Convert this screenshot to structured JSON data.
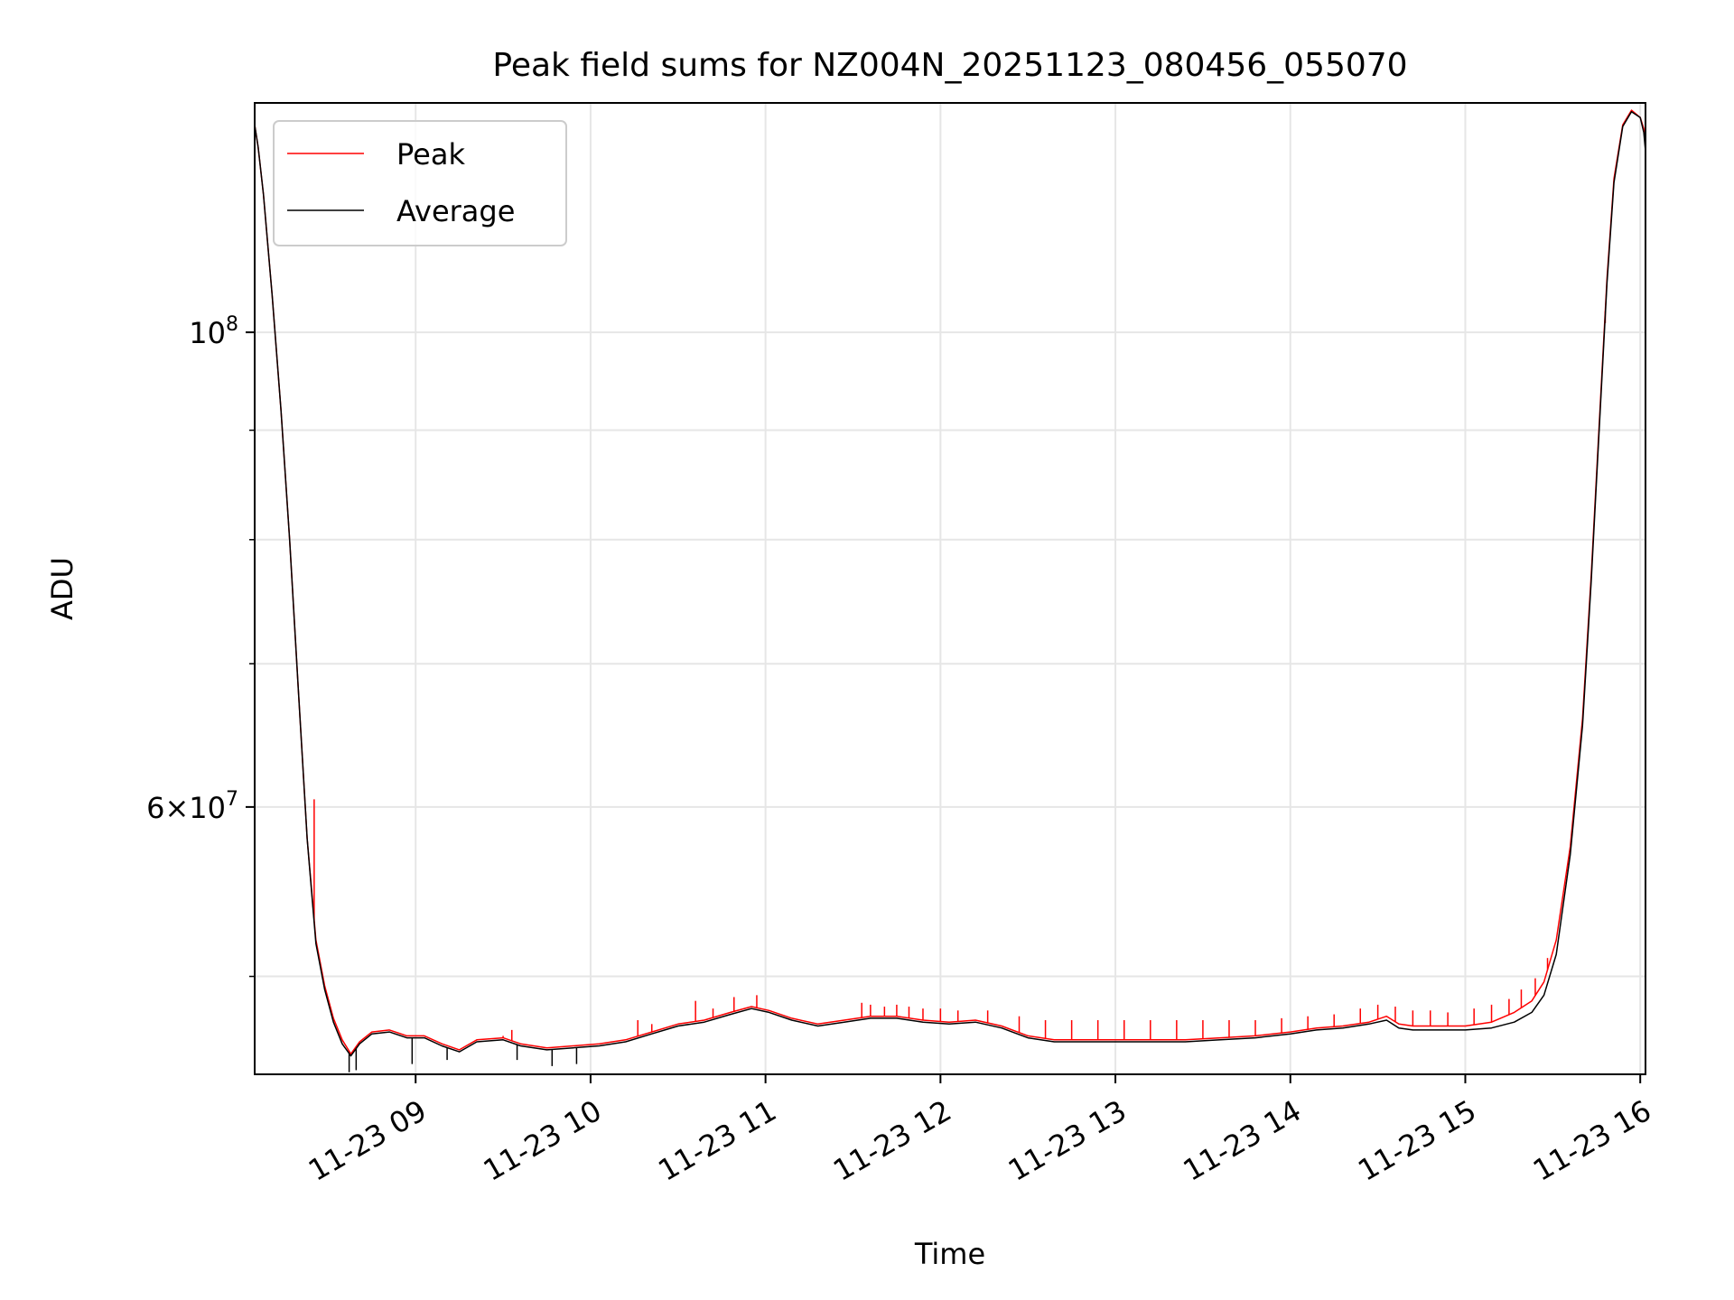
{
  "chart_data": {
    "type": "line",
    "title": "Peak field sums for NZ004N_20251123_080456_055070",
    "xlabel": "Time",
    "ylabel": "ADU",
    "yscale": "log",
    "xlim": [
      8.08,
      16.03
    ],
    "ylim": [
      45000000,
      128000000
    ],
    "x_ticks": [
      {
        "value": 9,
        "label": "11-23 09"
      },
      {
        "value": 10,
        "label": "11-23 10"
      },
      {
        "value": 11,
        "label": "11-23 11"
      },
      {
        "value": 12,
        "label": "11-23 12"
      },
      {
        "value": 13,
        "label": "11-23 13"
      },
      {
        "value": 14,
        "label": "11-23 14"
      },
      {
        "value": 15,
        "label": "11-23 15"
      },
      {
        "value": 16,
        "label": "11-23 16"
      }
    ],
    "y_major_ticks": [
      {
        "value": 100000000,
        "base": "10",
        "exp": "8",
        "mult": ""
      },
      {
        "value": 60000000,
        "base": "10",
        "exp": "7",
        "mult": "6"
      }
    ],
    "y_minor_ticks": [
      50000000,
      70000000,
      80000000,
      90000000
    ],
    "grid": true,
    "legend": {
      "position": "top-left"
    },
    "series": [
      {
        "name": "Peak",
        "color": "#ff0000",
        "points": [
          [
            8.08,
            125000000
          ],
          [
            8.1,
            122000000
          ],
          [
            8.13,
            116000000
          ],
          [
            8.18,
            104000000
          ],
          [
            8.23,
            92000000
          ],
          [
            8.28,
            80000000
          ],
          [
            8.33,
            68000000
          ],
          [
            8.38,
            58000000
          ],
          [
            8.43,
            52000000
          ],
          [
            8.48,
            49500000
          ],
          [
            8.53,
            47800000
          ],
          [
            8.58,
            46700000
          ],
          [
            8.63,
            46000000
          ],
          [
            8.68,
            46600000
          ],
          [
            8.75,
            47100000
          ],
          [
            8.85,
            47200000
          ],
          [
            8.95,
            46900000
          ],
          [
            9.05,
            46900000
          ],
          [
            9.15,
            46500000
          ],
          [
            9.25,
            46200000
          ],
          [
            9.35,
            46700000
          ],
          [
            9.5,
            46800000
          ],
          [
            9.6,
            46500000
          ],
          [
            9.75,
            46300000
          ],
          [
            9.9,
            46400000
          ],
          [
            10.05,
            46500000
          ],
          [
            10.2,
            46700000
          ],
          [
            10.35,
            47100000
          ],
          [
            10.5,
            47500000
          ],
          [
            10.65,
            47700000
          ],
          [
            10.8,
            48100000
          ],
          [
            10.92,
            48400000
          ],
          [
            11.02,
            48200000
          ],
          [
            11.15,
            47800000
          ],
          [
            11.3,
            47500000
          ],
          [
            11.45,
            47700000
          ],
          [
            11.6,
            47900000
          ],
          [
            11.75,
            47900000
          ],
          [
            11.9,
            47700000
          ],
          [
            12.05,
            47600000
          ],
          [
            12.2,
            47700000
          ],
          [
            12.35,
            47400000
          ],
          [
            12.5,
            46900000
          ],
          [
            12.65,
            46700000
          ],
          [
            12.8,
            46700000
          ],
          [
            13.0,
            46700000
          ],
          [
            13.2,
            46700000
          ],
          [
            13.4,
            46700000
          ],
          [
            13.6,
            46800000
          ],
          [
            13.8,
            46900000
          ],
          [
            14.0,
            47100000
          ],
          [
            14.15,
            47300000
          ],
          [
            14.3,
            47400000
          ],
          [
            14.45,
            47600000
          ],
          [
            14.55,
            47900000
          ],
          [
            14.62,
            47500000
          ],
          [
            14.7,
            47400000
          ],
          [
            14.85,
            47400000
          ],
          [
            15.0,
            47400000
          ],
          [
            15.15,
            47600000
          ],
          [
            15.28,
            48100000
          ],
          [
            15.38,
            48700000
          ],
          [
            15.45,
            49700000
          ],
          [
            15.52,
            52000000
          ],
          [
            15.6,
            57500000
          ],
          [
            15.67,
            66000000
          ],
          [
            15.72,
            77000000
          ],
          [
            15.77,
            92000000
          ],
          [
            15.81,
            106000000
          ],
          [
            15.85,
            118000000
          ],
          [
            15.9,
            125000000
          ],
          [
            15.95,
            127000000
          ],
          [
            16.0,
            126000000
          ],
          [
            16.02,
            124500000
          ],
          [
            16.03,
            122000000
          ]
        ],
        "spikes": [
          [
            8.42,
            60500000
          ],
          [
            9.5,
            46900000
          ],
          [
            9.55,
            47200000
          ],
          [
            10.27,
            47700000
          ],
          [
            10.35,
            47500000
          ],
          [
            10.6,
            48700000
          ],
          [
            10.7,
            48300000
          ],
          [
            10.82,
            48900000
          ],
          [
            10.95,
            49000000
          ],
          [
            11.55,
            48600000
          ],
          [
            11.6,
            48500000
          ],
          [
            11.68,
            48400000
          ],
          [
            11.75,
            48500000
          ],
          [
            11.82,
            48400000
          ],
          [
            11.9,
            48300000
          ],
          [
            12.0,
            48300000
          ],
          [
            12.1,
            48200000
          ],
          [
            12.27,
            48200000
          ],
          [
            12.45,
            47900000
          ],
          [
            12.6,
            47700000
          ],
          [
            12.75,
            47700000
          ],
          [
            12.9,
            47700000
          ],
          [
            13.05,
            47700000
          ],
          [
            13.2,
            47700000
          ],
          [
            13.35,
            47700000
          ],
          [
            13.5,
            47700000
          ],
          [
            13.65,
            47700000
          ],
          [
            13.8,
            47700000
          ],
          [
            13.95,
            47800000
          ],
          [
            14.1,
            47900000
          ],
          [
            14.25,
            48000000
          ],
          [
            14.4,
            48300000
          ],
          [
            14.5,
            48500000
          ],
          [
            14.6,
            48400000
          ],
          [
            14.7,
            48200000
          ],
          [
            14.8,
            48200000
          ],
          [
            14.9,
            48100000
          ],
          [
            15.05,
            48300000
          ],
          [
            15.15,
            48500000
          ],
          [
            15.25,
            48800000
          ],
          [
            15.32,
            49300000
          ],
          [
            15.4,
            49900000
          ],
          [
            15.47,
            51000000
          ],
          [
            15.8,
            101000000
          ]
        ]
      },
      {
        "name": "Average",
        "color": "#000000",
        "points": [
          [
            8.08,
            125000000
          ],
          [
            8.1,
            122000000
          ],
          [
            8.13,
            116000000
          ],
          [
            8.18,
            104000000
          ],
          [
            8.23,
            92000000
          ],
          [
            8.28,
            80000000
          ],
          [
            8.33,
            68000000
          ],
          [
            8.38,
            58000000
          ],
          [
            8.43,
            51800000
          ],
          [
            8.48,
            49300000
          ],
          [
            8.53,
            47600000
          ],
          [
            8.58,
            46500000
          ],
          [
            8.63,
            45900000
          ],
          [
            8.68,
            46500000
          ],
          [
            8.75,
            47000000
          ],
          [
            8.85,
            47100000
          ],
          [
            8.95,
            46800000
          ],
          [
            9.05,
            46800000
          ],
          [
            9.15,
            46400000
          ],
          [
            9.25,
            46100000
          ],
          [
            9.35,
            46600000
          ],
          [
            9.5,
            46700000
          ],
          [
            9.6,
            46400000
          ],
          [
            9.75,
            46200000
          ],
          [
            9.9,
            46300000
          ],
          [
            10.05,
            46400000
          ],
          [
            10.2,
            46600000
          ],
          [
            10.35,
            47000000
          ],
          [
            10.5,
            47400000
          ],
          [
            10.65,
            47600000
          ],
          [
            10.8,
            48000000
          ],
          [
            10.92,
            48300000
          ],
          [
            11.02,
            48100000
          ],
          [
            11.15,
            47700000
          ],
          [
            11.3,
            47400000
          ],
          [
            11.45,
            47600000
          ],
          [
            11.6,
            47800000
          ],
          [
            11.75,
            47800000
          ],
          [
            11.9,
            47600000
          ],
          [
            12.05,
            47500000
          ],
          [
            12.2,
            47600000
          ],
          [
            12.35,
            47300000
          ],
          [
            12.5,
            46800000
          ],
          [
            12.65,
            46600000
          ],
          [
            12.8,
            46600000
          ],
          [
            13.0,
            46600000
          ],
          [
            13.2,
            46600000
          ],
          [
            13.4,
            46600000
          ],
          [
            13.6,
            46700000
          ],
          [
            13.8,
            46800000
          ],
          [
            14.0,
            47000000
          ],
          [
            14.15,
            47200000
          ],
          [
            14.3,
            47300000
          ],
          [
            14.45,
            47500000
          ],
          [
            14.55,
            47700000
          ],
          [
            14.62,
            47300000
          ],
          [
            14.7,
            47200000
          ],
          [
            14.85,
            47200000
          ],
          [
            15.0,
            47200000
          ],
          [
            15.15,
            47300000
          ],
          [
            15.28,
            47600000
          ],
          [
            15.38,
            48100000
          ],
          [
            15.45,
            49000000
          ],
          [
            15.52,
            51200000
          ],
          [
            15.6,
            57000000
          ],
          [
            15.67,
            65500000
          ],
          [
            15.72,
            76500000
          ],
          [
            15.77,
            91500000
          ],
          [
            15.81,
            105500000
          ],
          [
            15.85,
            117500000
          ],
          [
            15.9,
            124800000
          ],
          [
            15.95,
            126800000
          ],
          [
            16.0,
            126000000
          ],
          [
            16.02,
            124000000
          ],
          [
            16.03,
            121500000
          ]
        ],
        "spikes": [
          [
            8.62,
            45100000
          ],
          [
            8.66,
            45200000
          ],
          [
            8.98,
            45500000
          ],
          [
            9.18,
            45700000
          ],
          [
            9.58,
            45700000
          ],
          [
            9.78,
            45400000
          ],
          [
            9.92,
            45500000
          ]
        ]
      }
    ]
  }
}
